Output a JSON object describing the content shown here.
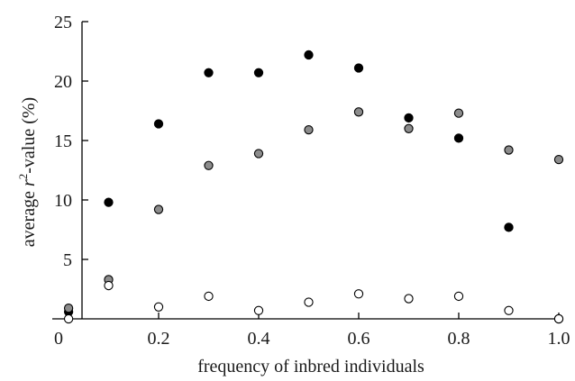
{
  "chart_data": {
    "type": "scatter",
    "title": "",
    "xlabel": "frequency of inbred individuals",
    "ylabel": {
      "prefix": "average ",
      "italic": "r",
      "sup": "2",
      "suffix": "-value (%)"
    },
    "xlim": [
      0,
      1.0
    ],
    "ylim": [
      0,
      25
    ],
    "x_ticks": [
      0,
      0.2,
      0.4,
      0.6,
      0.8,
      1.0
    ],
    "x_tick_labels": [
      "0",
      "0.2",
      "0.4",
      "0.6",
      "0.8",
      "1.0"
    ],
    "y_ticks": [
      5,
      10,
      15,
      20,
      25
    ],
    "y_tick_labels": [
      "5",
      "10",
      "15",
      "20",
      "25"
    ],
    "grid": false,
    "legend": "none",
    "series": [
      {
        "fill": "#000000",
        "points": [
          {
            "x": 0.02,
            "y": 0.6
          },
          {
            "x": 0.1,
            "y": 9.8
          },
          {
            "x": 0.2,
            "y": 16.4
          },
          {
            "x": 0.3,
            "y": 20.7
          },
          {
            "x": 0.4,
            "y": 20.7
          },
          {
            "x": 0.5,
            "y": 22.2
          },
          {
            "x": 0.6,
            "y": 21.1
          },
          {
            "x": 0.7,
            "y": 16.9
          },
          {
            "x": 0.8,
            "y": 15.2
          },
          {
            "x": 0.9,
            "y": 7.7
          },
          {
            "x": 1.0,
            "y": 0.0
          }
        ]
      },
      {
        "fill": "#8c8c8c",
        "points": [
          {
            "x": 0.02,
            "y": 0.9
          },
          {
            "x": 0.1,
            "y": 3.3
          },
          {
            "x": 0.2,
            "y": 9.2
          },
          {
            "x": 0.3,
            "y": 12.9
          },
          {
            "x": 0.4,
            "y": 13.9
          },
          {
            "x": 0.5,
            "y": 15.9
          },
          {
            "x": 0.6,
            "y": 17.4
          },
          {
            "x": 0.7,
            "y": 16.0
          },
          {
            "x": 0.8,
            "y": 17.3
          },
          {
            "x": 0.9,
            "y": 14.2
          },
          {
            "x": 1.0,
            "y": 13.4
          }
        ]
      },
      {
        "fill": "#ffffff",
        "points": [
          {
            "x": 0.02,
            "y": 0.0
          },
          {
            "x": 0.1,
            "y": 2.8
          },
          {
            "x": 0.2,
            "y": 1.0
          },
          {
            "x": 0.3,
            "y": 1.9
          },
          {
            "x": 0.4,
            "y": 0.7
          },
          {
            "x": 0.5,
            "y": 1.4
          },
          {
            "x": 0.6,
            "y": 2.1
          },
          {
            "x": 0.7,
            "y": 1.7
          },
          {
            "x": 0.8,
            "y": 1.9
          },
          {
            "x": 0.9,
            "y": 0.7
          },
          {
            "x": 1.0,
            "y": 0.0
          }
        ]
      }
    ]
  }
}
